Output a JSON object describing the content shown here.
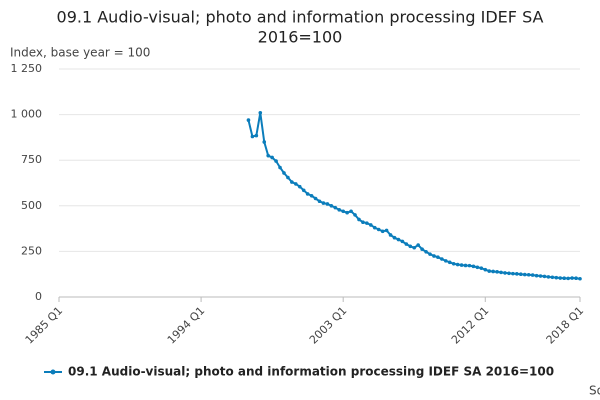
{
  "chart_data": {
    "type": "line",
    "title": "09.1 Audio-visual; photo and information processing IDEF SA 2016=100",
    "title_lines": [
      "09.1 Audio-visual; photo and information processing IDEF SA",
      "2016=100"
    ],
    "y_label": "Index, base year = 100",
    "source": "Source:",
    "xlim": [
      1985,
      2018
    ],
    "xticks": [
      {
        "value": 1985,
        "label": "1985 Q1"
      },
      {
        "value": 1994,
        "label": "1994 Q1"
      },
      {
        "value": 2003,
        "label": "2003 Q1"
      },
      {
        "value": 2012,
        "label": "2012 Q1"
      },
      {
        "value": 2018,
        "label": "2018 Q1"
      }
    ],
    "ylim": [
      0,
      1250
    ],
    "yticks": [
      0,
      250,
      500,
      750,
      {
        "value": 1000,
        "label": "1 000"
      },
      {
        "value": 1250,
        "label": "1 250"
      }
    ],
    "grid": true,
    "x": [
      1997,
      1997.25,
      1997.5,
      1997.75,
      1998,
      1998.25,
      1998.5,
      1998.75,
      1999,
      1999.25,
      1999.5,
      1999.75,
      2000,
      2000.25,
      2000.5,
      2000.75,
      2001,
      2001.25,
      2001.5,
      2001.75,
      2002,
      2002.25,
      2002.5,
      2002.75,
      2003,
      2003.25,
      2003.5,
      2003.75,
      2004,
      2004.25,
      2004.5,
      2004.75,
      2005,
      2005.25,
      2005.5,
      2005.75,
      2006,
      2006.25,
      2006.5,
      2006.75,
      2007,
      2007.25,
      2007.5,
      2007.75,
      2008,
      2008.25,
      2008.5,
      2008.75,
      2009,
      2009.25,
      2009.5,
      2009.75,
      2010,
      2010.25,
      2010.5,
      2010.75,
      2011,
      2011.25,
      2011.5,
      2011.75,
      2012,
      2012.25,
      2012.5,
      2012.75,
      2013,
      2013.25,
      2013.5,
      2013.75,
      2014,
      2014.25,
      2014.5,
      2014.75,
      2015,
      2015.25,
      2015.5,
      2015.75,
      2016,
      2016.25,
      2016.5,
      2016.75,
      2017,
      2017.25,
      2017.5,
      2017.75,
      2018
    ],
    "series": [
      {
        "name": "09.1 Audio-visual; photo and information processing IDEF SA 2016=100",
        "color": "#0b7dbb",
        "values": [
          970,
          880,
          885,
          1010,
          850,
          775,
          765,
          745,
          710,
          680,
          655,
          630,
          620,
          605,
          585,
          565,
          555,
          540,
          525,
          515,
          510,
          500,
          490,
          478,
          470,
          462,
          470,
          450,
          425,
          410,
          405,
          395,
          380,
          370,
          360,
          365,
          340,
          325,
          315,
          305,
          290,
          278,
          270,
          285,
          262,
          248,
          235,
          225,
          218,
          208,
          198,
          190,
          182,
          178,
          175,
          173,
          172,
          168,
          163,
          158,
          150,
          142,
          140,
          138,
          135,
          132,
          130,
          128,
          127,
          125,
          123,
          122,
          120,
          117,
          115,
          113,
          110,
          108,
          106,
          104,
          103,
          102,
          104,
          103,
          100
        ]
      }
    ]
  }
}
